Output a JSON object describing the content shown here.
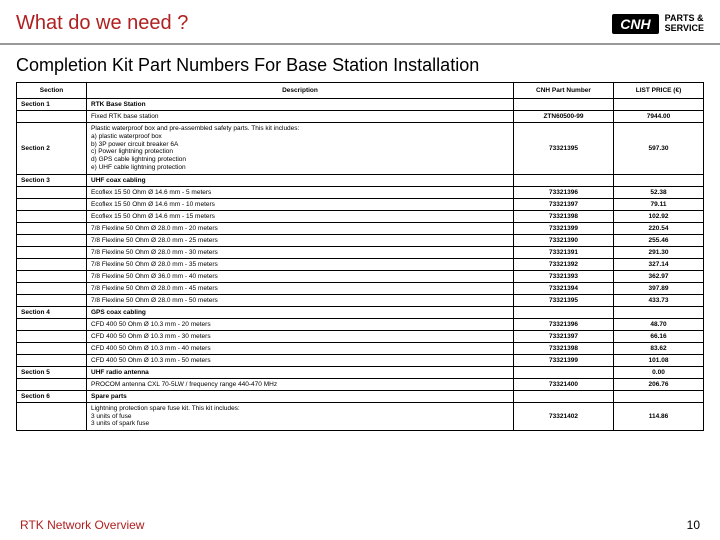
{
  "header": {
    "title": "What do we need ?",
    "logo_text": "CNH",
    "logo_sub1": "PARTS &",
    "logo_sub2": "SERVICE"
  },
  "subtitle": "Completion Kit Part Numbers For Base Station Installation",
  "columns": {
    "section": "Section",
    "desc": "Description",
    "part": "CNH Part Number",
    "price": "LIST PRICE (€)"
  },
  "rows": [
    {
      "section": "Section 1",
      "desc": "RTK Base Station",
      "part": "",
      "price": "",
      "bold": true,
      "sec_rowspan": 1
    },
    {
      "desc": "Fixed RTK base station",
      "part": "ZTN60500-99",
      "price": "7944.00",
      "rowmerge_sec": true
    },
    {
      "section": "Section 2",
      "desc": "Plastic waterproof box and pre-assembled safety parts. This kit includes:\na) plastic waterproof box\nb) 3P power circuit breaker 6A\nc) Power lightning protection\nd) GPS cable lightning protection\ne) UHF cable lightning protection",
      "part": "73321395",
      "price": "597.30",
      "sec_rowspan": 1,
      "multi": true
    },
    {
      "section": "Section 3",
      "desc": "UHF coax cabling",
      "part": "",
      "price": "",
      "bold": true
    },
    {
      "desc": "Ecoflex 15 50 Ohm Ø 14.6 mm - 5 meters",
      "part": "73321396",
      "price": "52.38"
    },
    {
      "desc": "Ecoflex 15 50 Ohm Ø 14.6 mm - 10 meters",
      "part": "73321397",
      "price": "79.11"
    },
    {
      "desc": "Ecoflex 15 50 Ohm Ø 14.6 mm - 15 meters",
      "part": "73321398",
      "price": "102.92"
    },
    {
      "desc": "7/8 Flexline 50 Ohm Ø 28.0 mm - 20 meters",
      "part": "73321399",
      "price": "220.54"
    },
    {
      "desc": "7/8 Flexline 50 Ohm Ø 28.0 mm - 25 meters",
      "part": "73321390",
      "price": "255.46"
    },
    {
      "desc": "7/8 Flexline 50 Ohm Ø 28.0 mm - 30 meters",
      "part": "73321391",
      "price": "291.30"
    },
    {
      "desc": "7/8 Flexline 50 Ohm Ø 28.0 mm - 35 meters",
      "part": "73321392",
      "price": "327.14"
    },
    {
      "desc": "7/8 Flexline 50 Ohm Ø 36.0 mm - 40 meters",
      "part": "73321393",
      "price": "362.97"
    },
    {
      "desc": "7/8 Flexline 50 Ohm Ø 28.0 mm - 45 meters",
      "part": "73321394",
      "price": "397.89"
    },
    {
      "desc": "7/8 Flexline 50 Ohm Ø 28.0 mm - 50 meters",
      "part": "73321395",
      "price": "433.73"
    },
    {
      "section": "Section 4",
      "desc": "GPS coax cabling",
      "part": "",
      "price": "",
      "bold": true
    },
    {
      "desc": "CFD 400 50 Ohm Ø 10.3 mm - 20 meters",
      "part": "73321396",
      "price": "48.70"
    },
    {
      "desc": "CFD 400 50 Ohm Ø 10.3 mm - 30 meters",
      "part": "73321397",
      "price": "66.16"
    },
    {
      "desc": "CFD 400 50 Ohm Ø 10.3 mm - 40 meters",
      "part": "73321398",
      "price": "83.62"
    },
    {
      "desc": "CFD 400 50 Ohm Ø 10.3 mm - 50 meters",
      "part": "73321399",
      "price": "101.08"
    },
    {
      "section": "Section 5",
      "desc": "UHF radio antenna",
      "part": "",
      "price": "0.00",
      "bold": true
    },
    {
      "desc": "PROCOM antenna CXL 70-5LW / frequency range 440-470 MHz",
      "part": "73321400",
      "price": "206.76"
    },
    {
      "section": "Section 6",
      "desc": "Spare parts",
      "part": "",
      "price": "",
      "bold": true
    },
    {
      "desc": "Lightning protection spare fuse kit. This kit includes:\n3 units of fuse\n3 units of spark fuse",
      "part": "73321402",
      "price": "114.86",
      "multi": true
    }
  ],
  "footer": {
    "left": "RTK Network Overview",
    "page": "10"
  },
  "colors": {
    "accent": "#b02020",
    "border": "#000000",
    "bg": "#ffffff"
  }
}
